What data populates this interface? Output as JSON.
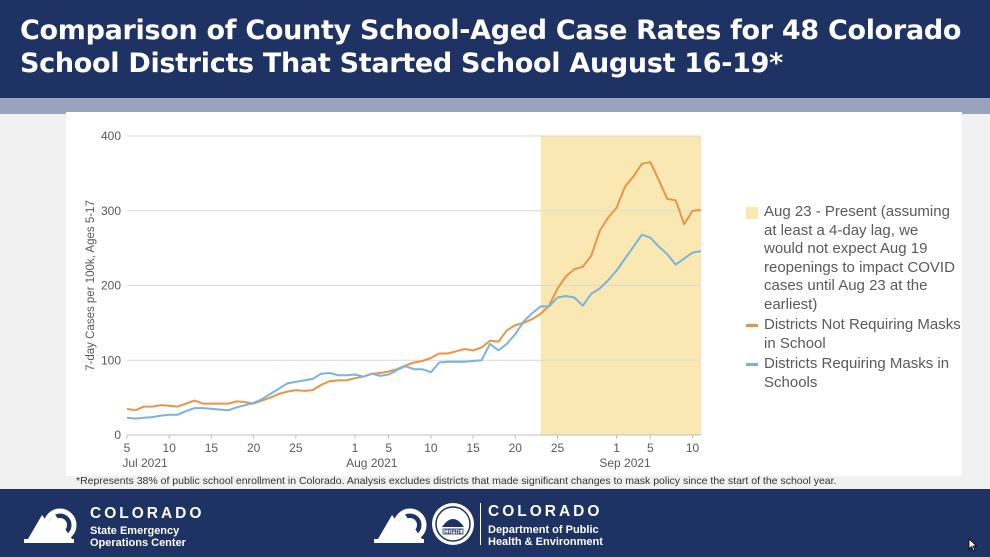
{
  "title": "Comparison of County School-Aged Case Rates for 48 Colorado School Districts That Started School August 16-19*",
  "colors": {
    "not_requiring": "#e8954a",
    "requiring": "#7cb3dc",
    "highlight": "#fae8b2",
    "navy": "#1f3264"
  },
  "legend": {
    "highlight_label": "Aug 23 - Present (assuming at least a 4-day lag, we would not expect Aug 19 reopenings to impact COVID cases until Aug 23 at the earliest)",
    "series1_label": "Districts Not Requiring Masks in School",
    "series2_label": "Districts Requiring Masks in Schools"
  },
  "chart_data": {
    "type": "line",
    "ylabel": "7-day Cases per 100k, Ages 5-17",
    "ylim": [
      0,
      400
    ],
    "yticks": [
      0,
      100,
      200,
      300,
      400
    ],
    "x_start": "2021-07-05",
    "x_end": "2021-09-11",
    "xticks": [
      {
        "date": "2021-07-05",
        "label": "5"
      },
      {
        "date": "2021-07-10",
        "label": "10"
      },
      {
        "date": "2021-07-15",
        "label": "15"
      },
      {
        "date": "2021-07-20",
        "label": "20"
      },
      {
        "date": "2021-07-25",
        "label": "25"
      },
      {
        "date": "2021-08-01",
        "label": "1"
      },
      {
        "date": "2021-08-05",
        "label": "5"
      },
      {
        "date": "2021-08-10",
        "label": "10"
      },
      {
        "date": "2021-08-15",
        "label": "15"
      },
      {
        "date": "2021-08-20",
        "label": "20"
      },
      {
        "date": "2021-08-25",
        "label": "25"
      },
      {
        "date": "2021-09-01",
        "label": "1"
      },
      {
        "date": "2021-09-05",
        "label": "5"
      },
      {
        "date": "2021-09-10",
        "label": "10"
      }
    ],
    "month_labels": [
      {
        "date": "2021-07-05",
        "label": "Jul 2021"
      },
      {
        "date": "2021-08-03",
        "label": "Aug 2021"
      },
      {
        "date": "2021-09-02",
        "label": "Sep 2021"
      }
    ],
    "highlight_range": [
      "2021-08-23",
      "2021-09-11"
    ],
    "grid": true,
    "legend_position": "right",
    "series": [
      {
        "name": "Districts Not Requiring Masks in School",
        "color": "#e8954a",
        "points": [
          [
            "2021-07-05",
            35
          ],
          [
            "2021-07-06",
            33
          ],
          [
            "2021-07-07",
            38
          ],
          [
            "2021-07-08",
            38
          ],
          [
            "2021-07-09",
            40
          ],
          [
            "2021-07-10",
            39
          ],
          [
            "2021-07-11",
            38
          ],
          [
            "2021-07-12",
            42
          ],
          [
            "2021-07-13",
            46
          ],
          [
            "2021-07-14",
            42
          ],
          [
            "2021-07-15",
            42
          ],
          [
            "2021-07-16",
            42
          ],
          [
            "2021-07-17",
            42
          ],
          [
            "2021-07-18",
            45
          ],
          [
            "2021-07-19",
            44
          ],
          [
            "2021-07-20",
            42
          ],
          [
            "2021-07-21",
            46
          ],
          [
            "2021-07-22",
            50
          ],
          [
            "2021-07-23",
            55
          ],
          [
            "2021-07-24",
            58
          ],
          [
            "2021-07-25",
            60
          ],
          [
            "2021-07-26",
            59
          ],
          [
            "2021-07-27",
            60
          ],
          [
            "2021-07-28",
            67
          ],
          [
            "2021-07-29",
            72
          ],
          [
            "2021-07-30",
            73
          ],
          [
            "2021-07-31",
            73
          ],
          [
            "2021-08-01",
            76
          ],
          [
            "2021-08-02",
            78
          ],
          [
            "2021-08-03",
            82
          ],
          [
            "2021-08-04",
            83
          ],
          [
            "2021-08-05",
            85
          ],
          [
            "2021-08-06",
            88
          ],
          [
            "2021-08-07",
            93
          ],
          [
            "2021-08-08",
            97
          ],
          [
            "2021-08-09",
            99
          ],
          [
            "2021-08-10",
            103
          ],
          [
            "2021-08-11",
            109
          ],
          [
            "2021-08-12",
            109
          ],
          [
            "2021-08-13",
            112
          ],
          [
            "2021-08-14",
            115
          ],
          [
            "2021-08-15",
            113
          ],
          [
            "2021-08-16",
            117
          ],
          [
            "2021-08-17",
            126
          ],
          [
            "2021-08-18",
            125
          ],
          [
            "2021-08-19",
            140
          ],
          [
            "2021-08-20",
            147
          ],
          [
            "2021-08-21",
            150
          ],
          [
            "2021-08-22",
            155
          ],
          [
            "2021-08-23",
            162
          ],
          [
            "2021-08-24",
            173
          ],
          [
            "2021-08-25",
            196
          ],
          [
            "2021-08-26",
            212
          ],
          [
            "2021-08-27",
            222
          ],
          [
            "2021-08-28",
            225
          ],
          [
            "2021-08-29",
            240
          ],
          [
            "2021-08-30",
            273
          ],
          [
            "2021-08-31",
            291
          ],
          [
            "2021-09-01",
            304
          ],
          [
            "2021-09-02",
            332
          ],
          [
            "2021-09-03",
            346
          ],
          [
            "2021-09-04",
            363
          ],
          [
            "2021-09-05",
            365
          ],
          [
            "2021-09-06",
            341
          ],
          [
            "2021-09-07",
            316
          ],
          [
            "2021-09-08",
            314
          ],
          [
            "2021-09-09",
            282
          ],
          [
            "2021-09-10",
            300
          ],
          [
            "2021-09-11",
            301
          ]
        ]
      },
      {
        "name": "Districts Requiring Masks in Schools",
        "color": "#7cb3dc",
        "points": [
          [
            "2021-07-05",
            23
          ],
          [
            "2021-07-06",
            22
          ],
          [
            "2021-07-07",
            23
          ],
          [
            "2021-07-08",
            24
          ],
          [
            "2021-07-09",
            26
          ],
          [
            "2021-07-10",
            27
          ],
          [
            "2021-07-11",
            27
          ],
          [
            "2021-07-12",
            32
          ],
          [
            "2021-07-13",
            36
          ],
          [
            "2021-07-14",
            36
          ],
          [
            "2021-07-15",
            35
          ],
          [
            "2021-07-16",
            34
          ],
          [
            "2021-07-17",
            33
          ],
          [
            "2021-07-18",
            37
          ],
          [
            "2021-07-19",
            40
          ],
          [
            "2021-07-20",
            43
          ],
          [
            "2021-07-21",
            48
          ],
          [
            "2021-07-22",
            55
          ],
          [
            "2021-07-23",
            62
          ],
          [
            "2021-07-24",
            69
          ],
          [
            "2021-07-25",
            71
          ],
          [
            "2021-07-26",
            73
          ],
          [
            "2021-07-27",
            75
          ],
          [
            "2021-07-28",
            82
          ],
          [
            "2021-07-29",
            83
          ],
          [
            "2021-07-30",
            80
          ],
          [
            "2021-07-31",
            80
          ],
          [
            "2021-08-01",
            81
          ],
          [
            "2021-08-02",
            78
          ],
          [
            "2021-08-03",
            82
          ],
          [
            "2021-08-04",
            79
          ],
          [
            "2021-08-05",
            81
          ],
          [
            "2021-08-06",
            87
          ],
          [
            "2021-08-07",
            92
          ],
          [
            "2021-08-08",
            88
          ],
          [
            "2021-08-09",
            88
          ],
          [
            "2021-08-10",
            84
          ],
          [
            "2021-08-11",
            97
          ],
          [
            "2021-08-12",
            98
          ],
          [
            "2021-08-13",
            98
          ],
          [
            "2021-08-14",
            98
          ],
          [
            "2021-08-15",
            99
          ],
          [
            "2021-08-16",
            100
          ],
          [
            "2021-08-17",
            122
          ],
          [
            "2021-08-18",
            113
          ],
          [
            "2021-08-19",
            122
          ],
          [
            "2021-08-20",
            135
          ],
          [
            "2021-08-21",
            152
          ],
          [
            "2021-08-22",
            163
          ],
          [
            "2021-08-23",
            172
          ],
          [
            "2021-08-24",
            172
          ],
          [
            "2021-08-25",
            184
          ],
          [
            "2021-08-26",
            186
          ],
          [
            "2021-08-27",
            184
          ],
          [
            "2021-08-28",
            173
          ],
          [
            "2021-08-29",
            189
          ],
          [
            "2021-08-30",
            196
          ],
          [
            "2021-08-31",
            207
          ],
          [
            "2021-09-01",
            220
          ],
          [
            "2021-09-02",
            236
          ],
          [
            "2021-09-03",
            252
          ],
          [
            "2021-09-04",
            268
          ],
          [
            "2021-09-05",
            264
          ],
          [
            "2021-09-06",
            252
          ],
          [
            "2021-09-07",
            242
          ],
          [
            "2021-09-08",
            228
          ],
          [
            "2021-09-09",
            236
          ],
          [
            "2021-09-10",
            244
          ],
          [
            "2021-09-11",
            246
          ]
        ]
      }
    ]
  },
  "footnote": "*Represents 38% of public school enrollment in Colorado. Analysis excludes districts that made significant changes to mask policy since the start of the school year.",
  "footer": {
    "left_logo": {
      "brand": "COLORADO",
      "line1": "State Emergency",
      "line2": "Operations Center"
    },
    "right_logo": {
      "brand": "COLORADO",
      "line1": "Department of Public",
      "line2": "Health & Environment",
      "seal_text": "CDPHE"
    }
  }
}
